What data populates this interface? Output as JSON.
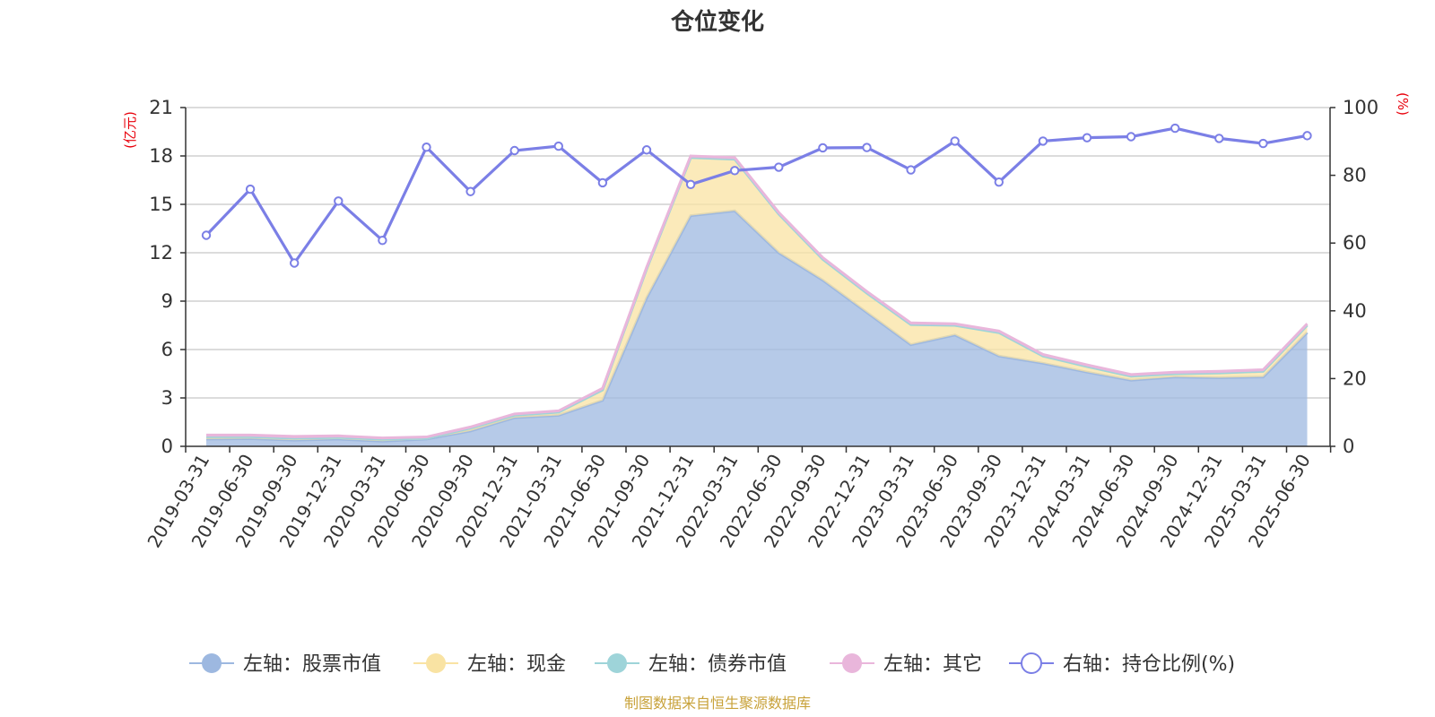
{
  "chart_data": {
    "type": "area",
    "title": "仓位变化",
    "left_axis": {
      "unit": "(亿元)",
      "ylim": [
        0,
        21
      ],
      "ticks": [
        0,
        3,
        6,
        9,
        12,
        15,
        18,
        21
      ]
    },
    "right_axis": {
      "unit": "(%)",
      "ylim": [
        0,
        100
      ],
      "ticks": [
        0,
        20,
        40,
        60,
        80,
        100
      ]
    },
    "categories": [
      "2019-03-31",
      "2019-06-30",
      "2019-09-30",
      "2019-12-31",
      "2020-03-31",
      "2020-06-30",
      "2020-09-30",
      "2020-12-31",
      "2021-03-31",
      "2021-06-30",
      "2021-09-30",
      "2021-12-31",
      "2022-03-31",
      "2022-06-30",
      "2022-09-30",
      "2022-12-31",
      "2023-03-31",
      "2023-06-30",
      "2023-09-30",
      "2023-12-31",
      "2024-03-31",
      "2024-06-30",
      "2024-09-30",
      "2024-12-31",
      "2025-03-31",
      "2025-06-30"
    ],
    "series": [
      {
        "name": "左轴：股票市值",
        "axis": "left",
        "stack": true,
        "color": "#9db8e0",
        "values": [
          0.45,
          0.48,
          0.38,
          0.45,
          0.32,
          0.45,
          0.95,
          1.78,
          1.92,
          2.85,
          9.2,
          14.3,
          14.6,
          12.0,
          10.3,
          8.3,
          6.3,
          6.9,
          5.6,
          5.15,
          4.6,
          4.1,
          4.3,
          4.25,
          4.3,
          7.05
        ]
      },
      {
        "name": "左轴：现金",
        "axis": "left",
        "stack": true,
        "color": "#f9e3a3",
        "values": [
          0.15,
          0.12,
          0.12,
          0.1,
          0.12,
          0.05,
          0.18,
          0.15,
          0.2,
          0.65,
          1.8,
          3.6,
          3.2,
          2.4,
          1.3,
          1.2,
          1.25,
          0.6,
          1.45,
          0.45,
          0.35,
          0.25,
          0.2,
          0.3,
          0.35,
          0.45
        ]
      },
      {
        "name": "左轴：债券市值",
        "axis": "left",
        "stack": true,
        "color": "#9ed4d9",
        "values": [
          0,
          0,
          0,
          0,
          0,
          0,
          0,
          0,
          0,
          0,
          0,
          0,
          0,
          0,
          0,
          0,
          0,
          0,
          0,
          0,
          0,
          0,
          0,
          0,
          0,
          0
        ]
      },
      {
        "name": "左轴：其它",
        "axis": "left",
        "stack": true,
        "color": "#e9b6db",
        "values": [
          0.1,
          0.1,
          0.12,
          0.1,
          0.08,
          0.08,
          0.07,
          0.08,
          0.08,
          0.1,
          0.1,
          0.1,
          0.1,
          0.1,
          0.1,
          0.1,
          0.1,
          0.1,
          0.1,
          0.1,
          0.1,
          0.1,
          0.1,
          0.1,
          0.1,
          0.1
        ]
      },
      {
        "name": "右轴：持仓比例(%)",
        "axis": "right",
        "stack": false,
        "color": "#7b7fe6",
        "values": [
          62.3,
          75.9,
          54.1,
          72.4,
          60.8,
          88.3,
          75.2,
          87.3,
          88.6,
          77.8,
          87.5,
          77.3,
          81.4,
          82.4,
          88.1,
          88.2,
          81.6,
          90.1,
          78.0,
          90.1,
          91.1,
          91.4,
          93.9,
          90.9,
          89.4,
          91.7
        ]
      }
    ],
    "legend_position": "bottom-center",
    "grid": true
  },
  "footer": {
    "source": "制图数据来自恒生聚源数据库"
  }
}
